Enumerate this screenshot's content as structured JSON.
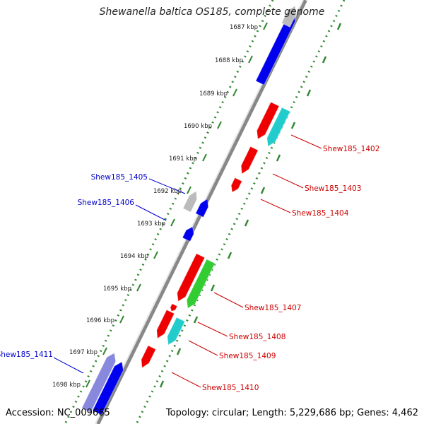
{
  "title": "Shewanella baltica OS185, complete genome",
  "footer": {
    "accession": "Accession: NC_009665",
    "summary": "Topology: circular; Length: 5,229,686 bp; Genes: 4,462"
  },
  "colors": {
    "forward_gene": "#0000ee",
    "reverse_gene": "#ee0000",
    "cyan_gene": "#22cccc",
    "green_gene": "#33cc33",
    "gray_gene": "#bbbbbb",
    "purple_gene": "#8888dd",
    "backbone": "#888888",
    "tick": "#338833",
    "forward_label": "#0000cc",
    "reverse_label": "#cc0000"
  },
  "kbp_ticks": [
    "1687 kbp",
    "1688 kbp",
    "1689 kbp",
    "1690 kbp",
    "1691 kbp",
    "1692 kbp",
    "1693 kbp",
    "1694 kbp",
    "1695 kbp",
    "1696 kbp",
    "1697 kbp",
    "1698 kbp"
  ],
  "gene_labels": [
    {
      "text": "Shew185_1402",
      "strand": "reverse"
    },
    {
      "text": "Shew185_1403",
      "strand": "reverse"
    },
    {
      "text": "Shew185_1404",
      "strand": "reverse"
    },
    {
      "text": "Shew185_1405",
      "strand": "forward"
    },
    {
      "text": "Shew185_1406",
      "strand": "forward"
    },
    {
      "text": "Shew185_1407",
      "strand": "reverse"
    },
    {
      "text": "Shew185_1408",
      "strand": "reverse"
    },
    {
      "text": "Shew185_1409",
      "strand": "reverse"
    },
    {
      "text": "Shew185_1410",
      "strand": "reverse"
    },
    {
      "text": "Shew185_1411",
      "strand": "forward"
    }
  ]
}
